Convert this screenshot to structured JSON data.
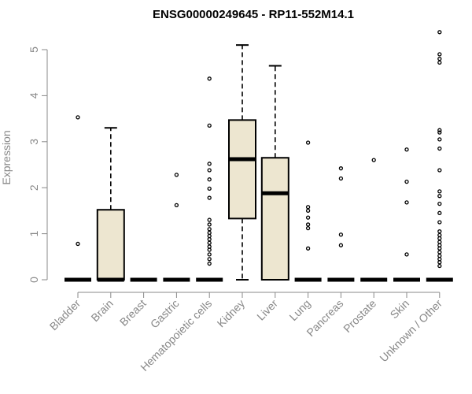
{
  "chart_data": {
    "type": "box",
    "title": "ENSG00000249645 - RP11-552M14.1",
    "ylabel": "Expression",
    "xlabel": "",
    "ylim": [
      0,
      5.4
    ],
    "yticks": [
      0,
      1,
      2,
      3,
      4,
      5
    ],
    "grid": false,
    "box_fill": "#ede6d0",
    "box_stroke": "#000000",
    "categories": [
      "Bladder",
      "Brain",
      "Breast",
      "Gastric",
      "Hematopoietic cells",
      "Kidney",
      "Liver",
      "Lung",
      "Pancreas",
      "Prostate",
      "Skin",
      "Unknown / Other"
    ],
    "boxes": [
      {
        "category": "Bladder",
        "min": 0,
        "q1": 0,
        "median": 0,
        "q3": 0,
        "max": 0,
        "outliers": [
          0.78,
          3.53
        ]
      },
      {
        "category": "Brain",
        "min": 0,
        "q1": 0,
        "median": 0,
        "q3": 1.52,
        "max": 3.3,
        "outliers": []
      },
      {
        "category": "Breast",
        "min": 0,
        "q1": 0,
        "median": 0,
        "q3": 0,
        "max": 0,
        "outliers": []
      },
      {
        "category": "Gastric",
        "min": 0,
        "q1": 0,
        "median": 0,
        "q3": 0,
        "max": 0,
        "outliers": [
          1.62,
          2.28
        ]
      },
      {
        "category": "Hematopoietic cells",
        "min": 0,
        "q1": 0,
        "median": 0,
        "q3": 0,
        "max": 0,
        "outliers": [
          0.35,
          0.45,
          0.55,
          0.65,
          0.72,
          0.8,
          0.88,
          0.95,
          1.02,
          1.1,
          1.2,
          1.3,
          1.78,
          1.98,
          2.18,
          2.38,
          2.52,
          3.35,
          4.37
        ]
      },
      {
        "category": "Kidney",
        "min": 0,
        "q1": 1.33,
        "median": 2.62,
        "q3": 3.47,
        "max": 5.1,
        "outliers": []
      },
      {
        "category": "Liver",
        "min": 0,
        "q1": 0,
        "median": 1.88,
        "q3": 2.65,
        "max": 4.65,
        "outliers": []
      },
      {
        "category": "Lung",
        "min": 0,
        "q1": 0,
        "median": 0,
        "q3": 0,
        "max": 0,
        "outliers": [
          0.68,
          1.12,
          1.2,
          1.35,
          1.5,
          1.58,
          2.98
        ]
      },
      {
        "category": "Pancreas",
        "min": 0,
        "q1": 0,
        "median": 0,
        "q3": 0,
        "max": 0,
        "outliers": [
          0.75,
          0.98,
          2.2,
          2.42
        ]
      },
      {
        "category": "Prostate",
        "min": 0,
        "q1": 0,
        "median": 0,
        "q3": 0,
        "max": 0,
        "outliers": [
          2.6
        ]
      },
      {
        "category": "Skin",
        "min": 0,
        "q1": 0,
        "median": 0,
        "q3": 0,
        "max": 0,
        "outliers": [
          0.55,
          1.68,
          2.13,
          2.83
        ]
      },
      {
        "category": "Unknown / Other",
        "min": 0,
        "q1": 0,
        "median": 0,
        "q3": 0,
        "max": 0,
        "outliers": [
          0.3,
          0.38,
          0.45,
          0.52,
          0.6,
          0.68,
          0.75,
          0.82,
          0.9,
          0.97,
          1.05,
          1.25,
          1.45,
          1.65,
          1.82,
          1.92,
          2.38,
          2.85,
          3.05,
          3.2,
          3.25,
          4.72,
          4.8,
          4.9,
          5.38
        ]
      }
    ]
  }
}
